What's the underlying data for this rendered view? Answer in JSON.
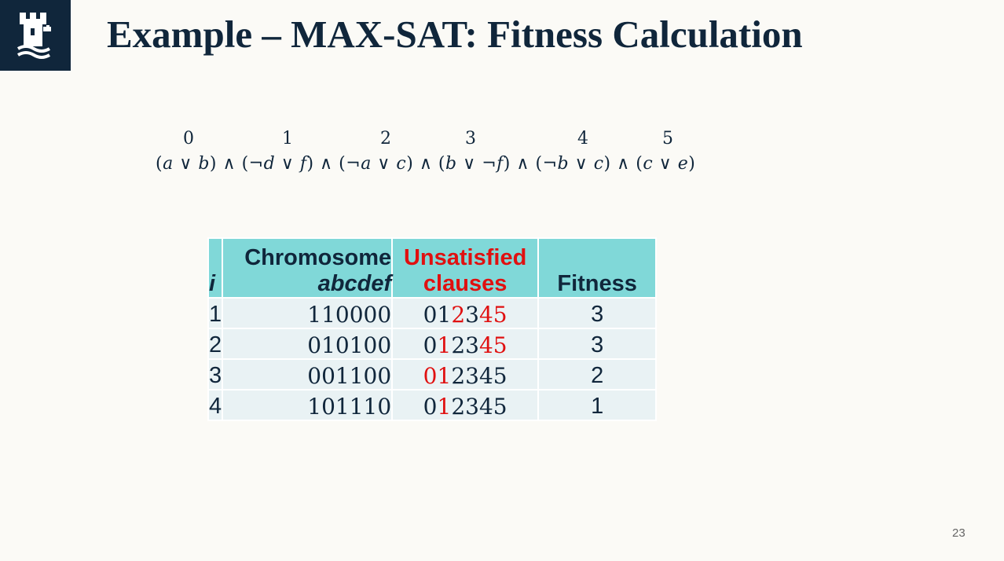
{
  "title": "Example – MAX-SAT: Fitness Calculation",
  "formula": {
    "clause_indices": [
      "0",
      "1",
      "2",
      "3",
      "4",
      "5"
    ],
    "clauses": [
      {
        "neg1": "",
        "v1": "a",
        "neg2": "",
        "v2": "b"
      },
      {
        "neg1": "¬",
        "v1": "d",
        "neg2": "",
        "v2": "f"
      },
      {
        "neg1": "¬",
        "v1": "a",
        "neg2": "",
        "v2": "c"
      },
      {
        "neg1": "",
        "v1": "b",
        "neg2": "¬",
        "v2": "f"
      },
      {
        "neg1": "¬",
        "v1": "b",
        "neg2": "",
        "v2": "c"
      },
      {
        "neg1": "",
        "v1": "c",
        "neg2": "",
        "v2": "e"
      }
    ]
  },
  "table": {
    "headers": {
      "i": "i",
      "chromosome_line1": "Chromosome",
      "chromosome_line2": "abcdef",
      "unsatisfied_line1": "Unsatisfied",
      "unsatisfied_line2": "clauses",
      "fitness": "Fitness"
    },
    "rows": [
      {
        "i": "1",
        "chromosome": "110000",
        "clauses": [
          "0",
          "1",
          "2",
          "3",
          "4",
          "5"
        ],
        "unsatisfied": [
          2,
          4,
          5
        ],
        "fitness": "3"
      },
      {
        "i": "2",
        "chromosome": "010100",
        "clauses": [
          "0",
          "1",
          "2",
          "3",
          "4",
          "5"
        ],
        "unsatisfied": [
          1,
          4,
          5
        ],
        "fitness": "3"
      },
      {
        "i": "3",
        "chromosome": "001100",
        "clauses": [
          "0",
          "1",
          "2",
          "3",
          "4",
          "5"
        ],
        "unsatisfied": [
          0,
          1
        ],
        "fitness": "2"
      },
      {
        "i": "4",
        "chromosome": "101110",
        "clauses": [
          "0",
          "1",
          "2",
          "3",
          "4",
          "5"
        ],
        "unsatisfied": [
          1
        ],
        "fitness": "1"
      }
    ]
  },
  "colors": {
    "navy": "#10263b",
    "header_bg": "#80d8d8",
    "row_bg": "#e9f2f4",
    "unsatisfied": "#e01010"
  },
  "logo_icon": "castle-icon",
  "page_number": "23"
}
